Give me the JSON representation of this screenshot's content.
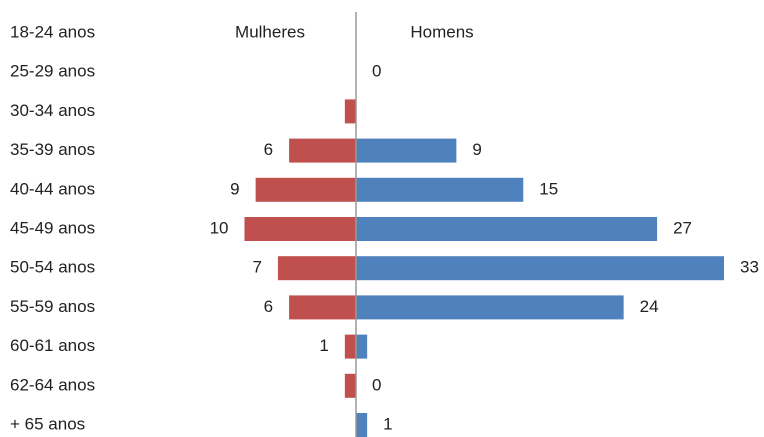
{
  "chart_data": {
    "type": "pyramid",
    "categories": [
      "18-24 anos",
      "25-29 anos",
      "30-34 anos",
      "35-39 anos",
      "40-44 anos",
      "45-49 anos",
      "50-54 anos",
      "55-59 anos",
      "60-61 anos",
      "62-64 anos",
      "+ 65 anos"
    ],
    "series": [
      {
        "name": "Mulheres",
        "color": "#c0504d",
        "side": "left",
        "values": [
          0,
          0,
          1,
          6,
          9,
          10,
          7,
          6,
          1,
          1,
          0
        ],
        "value_labels": [
          null,
          null,
          null,
          "6",
          "9",
          "10",
          "7",
          "6",
          "1",
          null,
          null
        ]
      },
      {
        "name": "Homens",
        "color": "#4f81bd",
        "side": "right",
        "values": [
          0,
          0,
          0,
          9,
          15,
          27,
          33,
          24,
          1,
          0,
          1
        ],
        "value_labels": [
          null,
          "0",
          null,
          "9",
          "15",
          "27",
          "33",
          "24",
          null,
          "0",
          "1"
        ]
      }
    ],
    "xlim": [
      0,
      33
    ]
  }
}
